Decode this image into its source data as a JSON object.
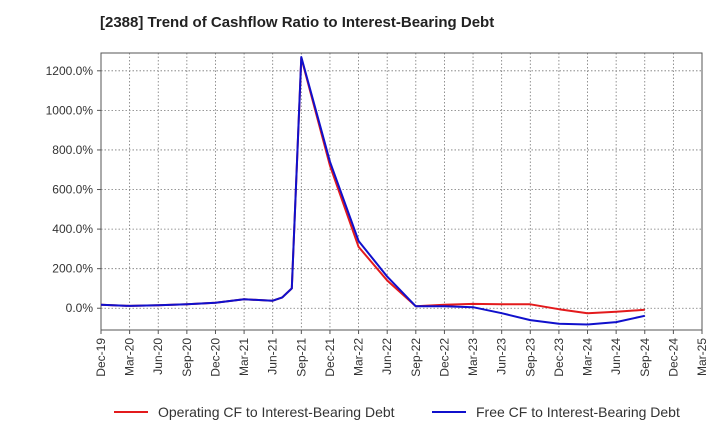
{
  "chart_data": {
    "type": "line",
    "title": "[2388]  Trend of Cashflow Ratio to Interest-Bearing Debt",
    "xlabel": "",
    "ylabel": "",
    "ylim": [
      -110,
      1290
    ],
    "y_ticks": [
      0,
      200,
      400,
      600,
      800,
      1000,
      1200
    ],
    "y_tick_labels": [
      "0.0%",
      "200.0%",
      "400.0%",
      "600.0%",
      "800.0%",
      "1000.0%",
      "1200.0%"
    ],
    "x_tick_labels": [
      "Dec-19",
      "Mar-20",
      "Jun-20",
      "Sep-20",
      "Dec-20",
      "Mar-21",
      "Jun-21",
      "Sep-21",
      "Dec-21",
      "Mar-22",
      "Jun-22",
      "Sep-22",
      "Dec-22",
      "Mar-23",
      "Jun-23",
      "Sep-23",
      "Dec-23",
      "Mar-24",
      "Jun-24",
      "Sep-24",
      "Dec-24",
      "Mar-25"
    ],
    "grid": true,
    "legend_position": "bottom",
    "series": [
      {
        "name": "Operating CF to Interest-Bearing Debt",
        "color": "#e31a1c",
        "x": [
          "Dec-19",
          "Mar-20",
          "Jun-20",
          "Sep-20",
          "Dec-20",
          "Mar-21",
          "Jun-21",
          "Jul-21",
          "Aug-21",
          "Sep-21",
          "Dec-21",
          "Mar-22",
          "Jun-22",
          "Sep-22",
          "Dec-22",
          "Mar-23",
          "Jun-23",
          "Sep-23",
          "Dec-23",
          "Mar-24",
          "Jun-24",
          "Sep-24"
        ],
        "values": [
          18,
          12,
          15,
          20,
          28,
          45,
          38,
          55,
          100,
          1265,
          720,
          310,
          140,
          10,
          18,
          22,
          20,
          20,
          -5,
          -25,
          -18,
          -8
        ]
      },
      {
        "name": "Free CF to Interest-Bearing Debt",
        "color": "#1010cc",
        "x": [
          "Dec-19",
          "Mar-20",
          "Jun-20",
          "Sep-20",
          "Dec-20",
          "Mar-21",
          "Jun-21",
          "Jul-21",
          "Aug-21",
          "Sep-21",
          "Dec-21",
          "Mar-22",
          "Jun-22",
          "Sep-22",
          "Dec-22",
          "Mar-23",
          "Jun-23",
          "Sep-23",
          "Dec-23",
          "Mar-24",
          "Jun-24",
          "Sep-24"
        ],
        "values": [
          18,
          12,
          15,
          20,
          28,
          45,
          38,
          55,
          100,
          1270,
          740,
          340,
          160,
          10,
          10,
          5,
          -25,
          -60,
          -78,
          -82,
          -70,
          -38
        ]
      }
    ]
  }
}
